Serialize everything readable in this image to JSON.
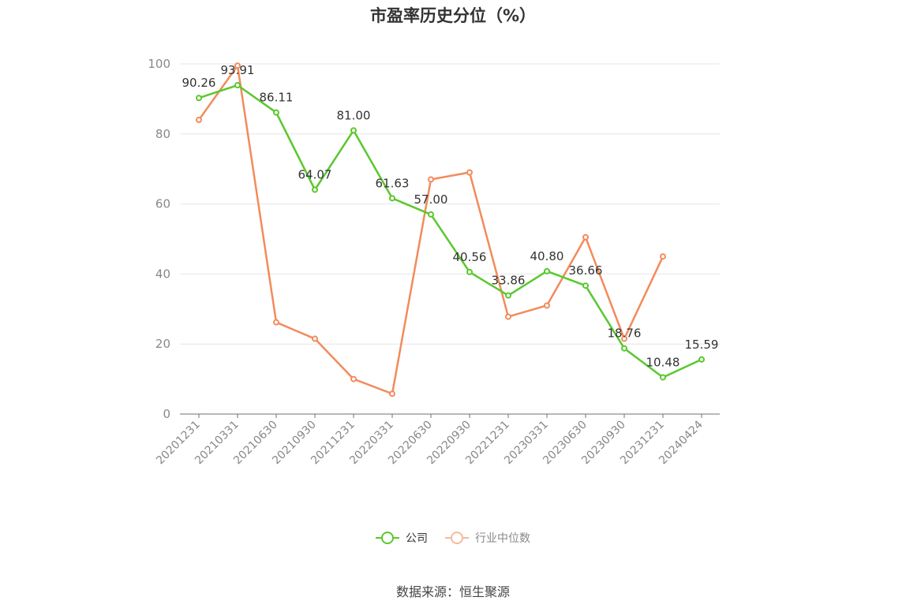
{
  "title": "市盈率历史分位（%）",
  "source": "数据来源：恒生聚源",
  "legend": {
    "company": "公司",
    "industry": "行业中位数"
  },
  "chart_data": {
    "type": "line",
    "categories": [
      "20201231",
      "20210331",
      "20210630",
      "20210930",
      "20211231",
      "20220331",
      "20220630",
      "20220930",
      "20221231",
      "20230331",
      "20230630",
      "20230930",
      "20231231",
      "20240424"
    ],
    "ylim": [
      0,
      100
    ],
    "yticks": [
      0,
      20,
      40,
      60,
      80,
      100
    ],
    "grid": true,
    "legend_position": "bottom",
    "series": [
      {
        "name": "公司",
        "color": "#5ac82d",
        "values": [
          90.26,
          93.91,
          86.11,
          64.07,
          81.0,
          61.63,
          57.0,
          40.56,
          33.86,
          40.8,
          36.66,
          18.76,
          10.48,
          15.59
        ],
        "labels": [
          "90.26",
          "93.91",
          "86.11",
          "64.07",
          "81.00",
          "61.63",
          "57.00",
          "40.56",
          "33.86",
          "40.80",
          "36.66",
          "18.76",
          "10.48",
          "15.59"
        ]
      },
      {
        "name": "行业中位数",
        "color": "#f28b5b",
        "values": [
          84.0,
          99.5,
          26.2,
          21.5,
          10.0,
          5.8,
          67.0,
          69.0,
          27.8,
          31.0,
          50.5,
          21.5,
          45.0,
          null
        ]
      }
    ]
  }
}
